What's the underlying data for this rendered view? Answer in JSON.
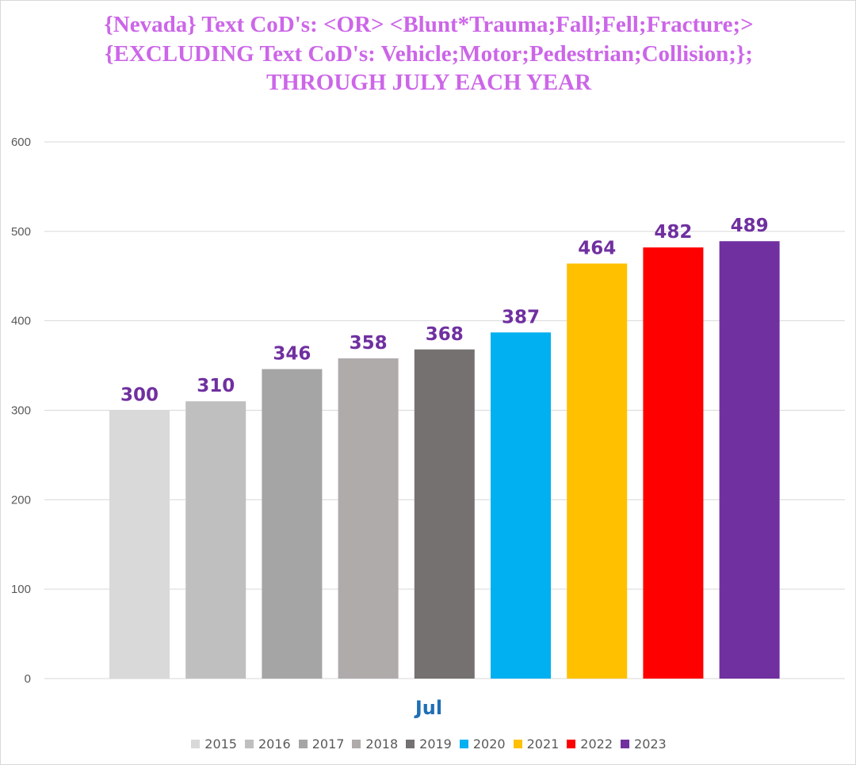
{
  "chart_data": {
    "type": "bar",
    "title": "{Nevada}  Text CoD's: <OR> <Blunt*Trauma;Fall;Fell;Fracture;>{EXCLUDING Text CoD's: Vehicle;Motor;Pedestrian;Collision;};  THROUGH JULY EACH YEAR",
    "categories": [
      "Jul"
    ],
    "series": [
      {
        "name": "2015",
        "values": [
          300
        ],
        "color": "#d9d9d9"
      },
      {
        "name": "2016",
        "values": [
          310
        ],
        "color": "#bfbfbf"
      },
      {
        "name": "2017",
        "values": [
          346
        ],
        "color": "#a5a5a5"
      },
      {
        "name": "2018",
        "values": [
          358
        ],
        "color": "#afabab"
      },
      {
        "name": "2019",
        "values": [
          368
        ],
        "color": "#767171"
      },
      {
        "name": "2020",
        "values": [
          387
        ],
        "color": "#00b0f0"
      },
      {
        "name": "2021",
        "values": [
          464
        ],
        "color": "#ffc000"
      },
      {
        "name": "2022",
        "values": [
          482
        ],
        "color": "#ff0000"
      },
      {
        "name": "2023",
        "values": [
          489
        ],
        "color": "#7030a0"
      }
    ],
    "ylim": [
      0,
      600
    ],
    "yticks": [
      0,
      100,
      200,
      300,
      400,
      500,
      600
    ],
    "xlabel": "",
    "ylabel": "",
    "grid": true,
    "legend": "bottom",
    "colors": {
      "title": "#cc66e8",
      "data_label": "#7030a0",
      "category_label": "#1f6fb5",
      "gridline": "#d9d9d9"
    }
  }
}
